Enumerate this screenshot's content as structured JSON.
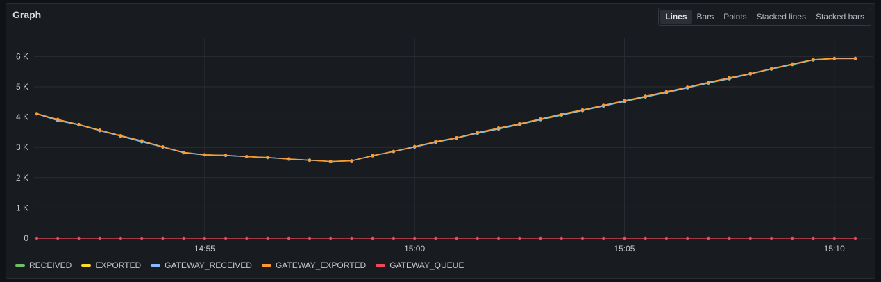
{
  "panel": {
    "title": "Graph",
    "modes": [
      {
        "label": "Lines",
        "active": true
      },
      {
        "label": "Bars",
        "active": false
      },
      {
        "label": "Points",
        "active": false
      },
      {
        "label": "Stacked lines",
        "active": false
      },
      {
        "label": "Stacked bars",
        "active": false
      }
    ]
  },
  "chart_data": {
    "type": "line",
    "title": "Graph",
    "xlabel": "",
    "ylabel": "",
    "grid": true,
    "legend_placement": "bottom-left",
    "x_ticks": [
      "14:55",
      "15:00",
      "15:05",
      "15:10"
    ],
    "y_ticks": [
      "0",
      "1 K",
      "2 K",
      "3 K",
      "4 K",
      "5 K",
      "6 K"
    ],
    "ylim": [
      0,
      6500
    ],
    "series": [
      {
        "name": "RECEIVED",
        "color": "#73bf69",
        "values": [
          4100,
          3880,
          3740,
          3550,
          3370,
          3180,
          3010,
          2820,
          2750,
          2730,
          2690,
          2660,
          2610,
          2570,
          2530,
          2550,
          2720,
          2860,
          3010,
          3160,
          3300,
          3460,
          3600,
          3750,
          3910,
          4060,
          4210,
          4360,
          4510,
          4660,
          4800,
          4960,
          5120,
          5260,
          5420,
          5580,
          5730,
          5880,
          5930,
          5930
        ]
      },
      {
        "name": "EXPORTED",
        "color": "#fade2a",
        "values": [
          4120,
          3920,
          3760,
          3570,
          3390,
          3220,
          3020,
          2840,
          2760,
          2740,
          2700,
          2670,
          2620,
          2580,
          2540,
          2560,
          2730,
          2870,
          3030,
          3190,
          3320,
          3490,
          3640,
          3780,
          3940,
          4100,
          4240,
          4390,
          4540,
          4690,
          4840,
          4990,
          5150,
          5300,
          5440,
          5600,
          5760,
          5900,
          5940,
          5940
        ]
      },
      {
        "name": "GATEWAY_RECEIVED",
        "color": "#8ab8ff",
        "values": [
          4100,
          3890,
          3740,
          3550,
          3370,
          3190,
          3010,
          2820,
          2750,
          2730,
          2690,
          2660,
          2610,
          2570,
          2530,
          2550,
          2720,
          2860,
          3010,
          3170,
          3310,
          3470,
          3610,
          3760,
          3920,
          4070,
          4220,
          4370,
          4520,
          4670,
          4810,
          4970,
          5130,
          5270,
          5430,
          5590,
          5740,
          5890,
          5930,
          5930
        ]
      },
      {
        "name": "GATEWAY_EXPORTED",
        "color": "#ff9830",
        "values": [
          4110,
          3930,
          3750,
          3570,
          3390,
          3220,
          3020,
          2840,
          2760,
          2740,
          2700,
          2670,
          2620,
          2580,
          2540,
          2560,
          2730,
          2870,
          3030,
          3190,
          3320,
          3490,
          3640,
          3780,
          3940,
          4100,
          4240,
          4390,
          4540,
          4690,
          4840,
          4990,
          5150,
          5300,
          5440,
          5600,
          5760,
          5900,
          5940,
          5940
        ]
      },
      {
        "name": "GATEWAY_QUEUE",
        "color": "#f2495c",
        "values": [
          0,
          0,
          0,
          0,
          0,
          0,
          0,
          0,
          0,
          0,
          0,
          0,
          0,
          0,
          0,
          0,
          0,
          0,
          0,
          0,
          0,
          0,
          0,
          0,
          0,
          0,
          0,
          0,
          0,
          0,
          0,
          0,
          0,
          0,
          0,
          0,
          0,
          0,
          0,
          0
        ]
      }
    ]
  }
}
